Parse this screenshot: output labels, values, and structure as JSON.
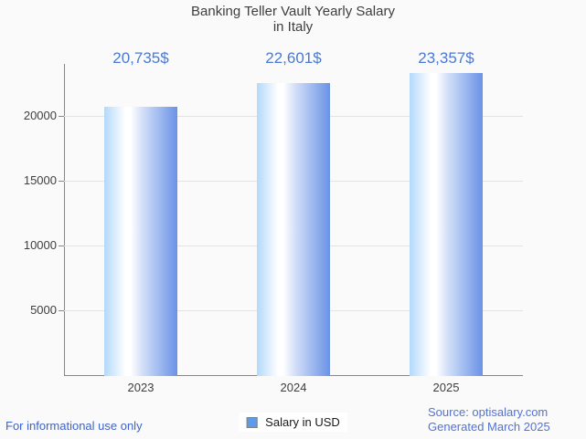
{
  "title": {
    "line1": "Banking Teller Vault Yearly Salary",
    "line2": "in Italy"
  },
  "chart_data": {
    "type": "bar",
    "title": "Banking Teller Vault Yearly Salary in Italy",
    "categories": [
      "2023",
      "2024",
      "2025"
    ],
    "values": [
      20735,
      22601,
      23357
    ],
    "value_labels": [
      "20,735$",
      "22,601$",
      "23,357$"
    ],
    "series": [
      {
        "name": "Salary in USD",
        "values": [
          20735,
          22601,
          23357
        ]
      }
    ],
    "xlabel": "",
    "ylabel": "",
    "ylim": [
      0,
      24000
    ],
    "yticks": [
      5000,
      10000,
      15000,
      20000
    ],
    "grid": true,
    "legend_position": "bottom-center"
  },
  "legend": {
    "label": "Salary in USD"
  },
  "footer": {
    "left": "For informational use only",
    "source": "Source: optisalary.com",
    "generated": "Generated March 2025"
  },
  "colors": {
    "background": "#fafafa",
    "title_text": "#3e3e3e",
    "axis_text": "#3e3e3e",
    "axis_line": "#878787",
    "gridline": "#e3e3e3",
    "value_label": "#4b79d2",
    "bar_edge_light": "#b3d9fa",
    "bar_highlight": "#ffffff",
    "bar_edge_dark": "#6a92e6",
    "legend_swatch": "#5e9ae6",
    "legend_swatch_border": "#848484",
    "legend_text": "#1a1a1a",
    "footer_left": "#3f63c8",
    "footer_right": "#5273d6"
  }
}
